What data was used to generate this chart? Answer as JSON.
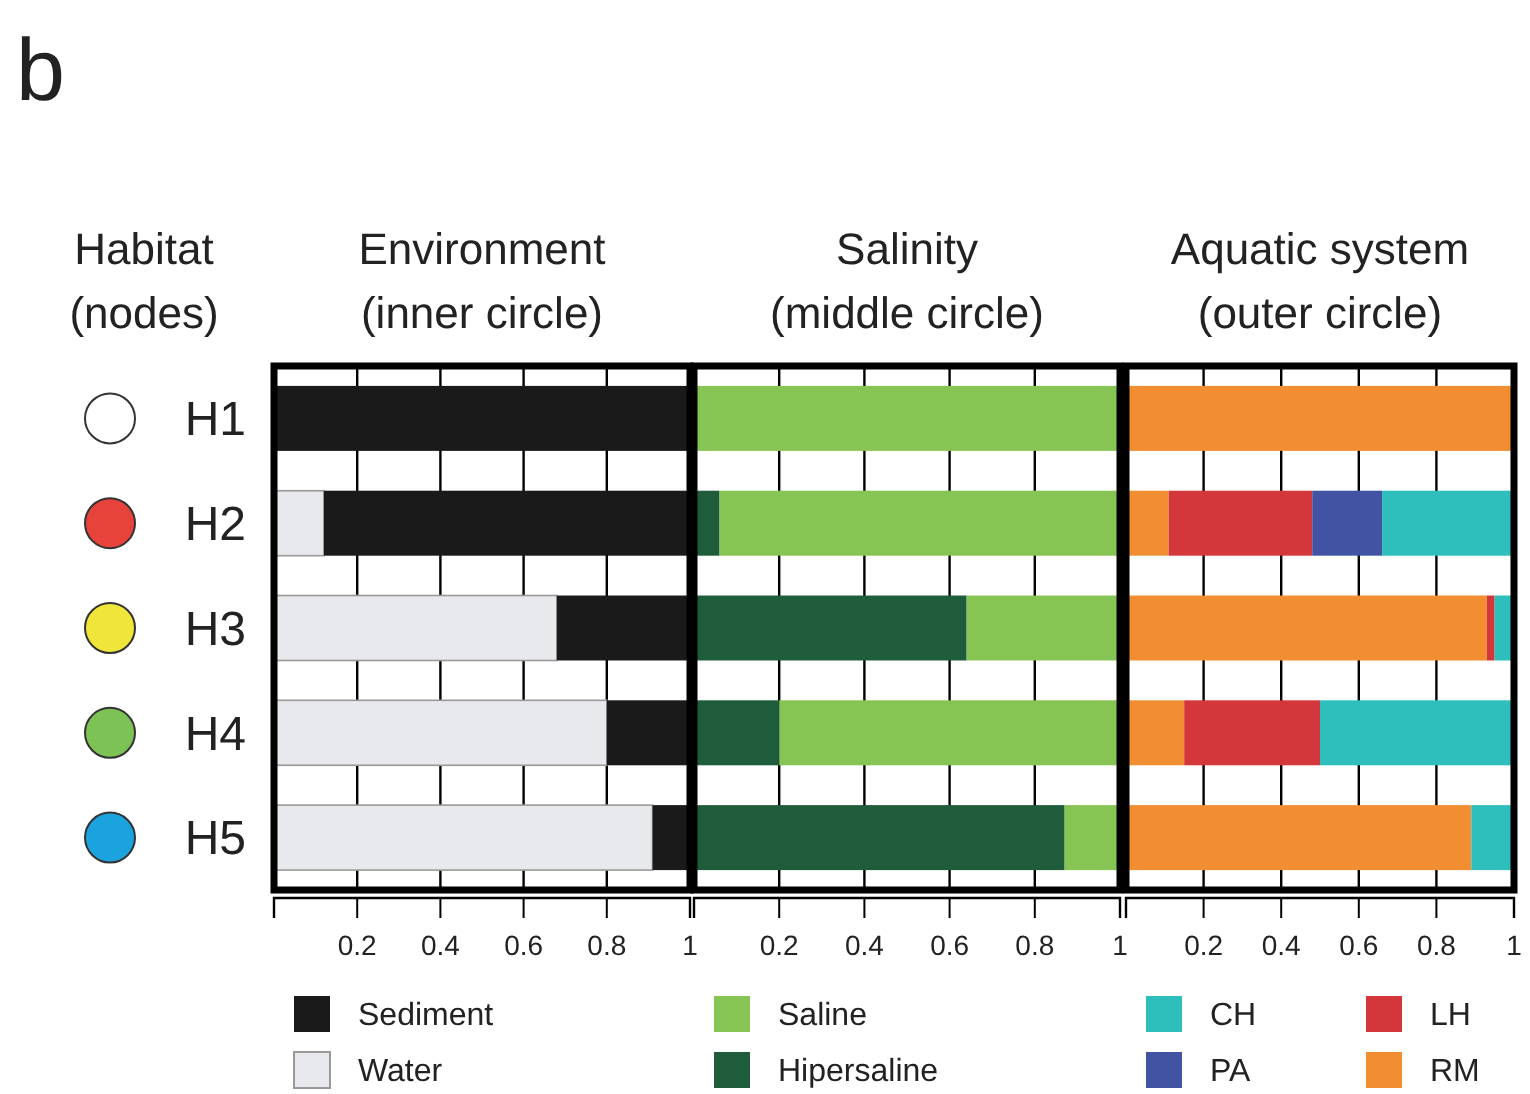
{
  "chart_data": [
    {
      "type": "bar",
      "orientation": "horizontal",
      "stacked": true,
      "title": "Environment",
      "subtitle": "(inner circle)",
      "ylabel": "Habitat (nodes)",
      "annotations": [
        "b"
      ],
      "categories": [
        "H1",
        "H2",
        "H3",
        "H4",
        "H5"
      ],
      "xlim": [
        0,
        1
      ],
      "xticks": [
        0.2,
        0.4,
        0.6,
        0.8,
        1
      ],
      "grid": "x",
      "legend": "bottom",
      "series": [
        {
          "name": "Water",
          "color": "#e8e9ec",
          "values": [
            0,
            0.12,
            0.68,
            0.8,
            0.91
          ]
        },
        {
          "name": "Sediment",
          "color": "#1a1a1a",
          "values": [
            1,
            0.88,
            0.32,
            0.2,
            0.09
          ]
        }
      ]
    },
    {
      "type": "bar",
      "orientation": "horizontal",
      "stacked": true,
      "title": "Salinity",
      "subtitle": "(middle circle)",
      "categories": [
        null,
        null,
        null,
        null,
        null
      ],
      "xlim": [
        0,
        1
      ],
      "xticks": [
        0.2,
        0.4,
        0.6,
        0.8,
        1
      ],
      "grid": "x",
      "legend": "bottom",
      "tick_labels": "x",
      "series": [
        {
          "name": "Hipersaline",
          "color": "#1e5c3c",
          "values": [
            0,
            0.06,
            0.64,
            0.2,
            0.87
          ]
        },
        {
          "name": "Saline",
          "color": "#86c453",
          "values": [
            1,
            0.94,
            0.36,
            0.8,
            0.13
          ]
        }
      ]
    },
    {
      "type": "bar",
      "orientation": "horizontal",
      "stacked": true,
      "title": "Aquatic system",
      "subtitle": "(outer circle)",
      "categories": [
        null,
        null,
        null,
        null,
        null
      ],
      "xlim": [
        0,
        1
      ],
      "xticks": [
        0.2,
        0.4,
        0.6,
        0.8,
        1
      ],
      "grid": "x",
      "legend": "bottom",
      "tick_labels": "x",
      "series": [
        {
          "name": "RM",
          "color": "#f28e32",
          "values": [
            1,
            0.11,
            0.93,
            0.15,
            0.89
          ]
        },
        {
          "name": "LH",
          "color": "#d3373b",
          "values": [
            0,
            0.37,
            0.02,
            0.35,
            0
          ]
        },
        {
          "name": "PA",
          "color": "#4353a3",
          "values": [
            0,
            0.18,
            0,
            0,
            0
          ]
        },
        {
          "name": "CH",
          "color": "#2ebfbc",
          "values": [
            0,
            0.34,
            0.05,
            0.5,
            0.11
          ]
        }
      ]
    }
  ]
}
